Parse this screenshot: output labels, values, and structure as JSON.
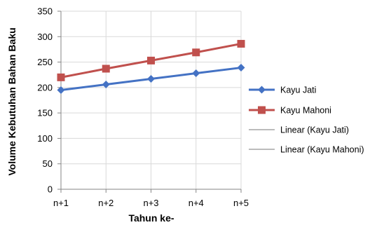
{
  "chart_data": {
    "type": "line",
    "title": "",
    "xlabel": "Tahun ke-",
    "ylabel": "Volume Kebutuhan Bahan Baku",
    "categories": [
      "n+1",
      "n+2",
      "n+3",
      "n+4",
      "n+5"
    ],
    "ylim": [
      0,
      350
    ],
    "yticks": [
      0,
      50,
      100,
      150,
      200,
      250,
      300,
      350
    ],
    "ytick_labels": [
      "0",
      "50",
      "100",
      "150",
      "200",
      "250",
      "300",
      "350"
    ],
    "grid": true,
    "legend_position": "right",
    "series": [
      {
        "name": "Kayu Jati",
        "values": [
          195,
          206,
          217,
          228,
          239
        ],
        "color": "#4472C4",
        "marker": "diamond"
      },
      {
        "name": "Kayu Mahoni",
        "values": [
          220,
          237,
          253,
          269,
          286
        ],
        "color": "#C0504D",
        "marker": "square"
      }
    ],
    "trendlines": [
      {
        "name": "Linear (Kayu Jati)",
        "color": "#A6A6A6"
      },
      {
        "name": "Linear (Kayu Mahoni)",
        "color": "#A6A6A6"
      }
    ],
    "gridline_color": "#D9D9D9",
    "axis_color": "#868686"
  }
}
